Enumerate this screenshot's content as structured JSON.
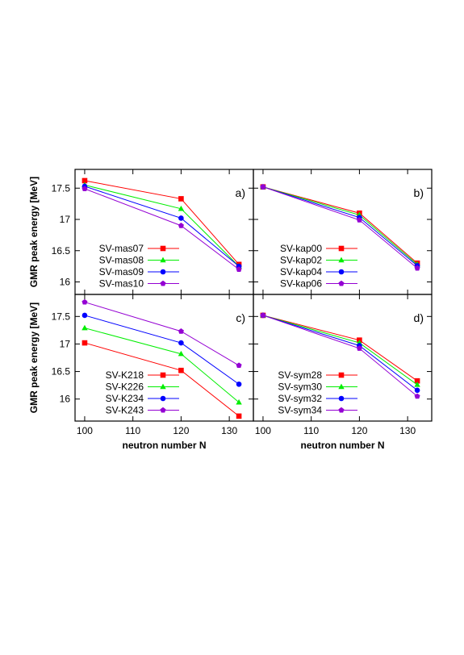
{
  "chart_data": [
    {
      "type": "line",
      "panel_label": "a)",
      "x": [
        100,
        120,
        132
      ],
      "xlabel": "",
      "ylabel": "GMR peak energy [MeV]",
      "xlim": [
        98,
        135
      ],
      "ylim": [
        15.8,
        17.8
      ],
      "xticks": [],
      "yticks": [
        "16",
        "16.5",
        "17",
        "17.5"
      ],
      "legend_position": "bottom-left",
      "series": [
        {
          "name": "SV-mas07",
          "color": "#ff0000",
          "marker": "square",
          "values": [
            17.62,
            17.33,
            16.28
          ]
        },
        {
          "name": "SV-mas08",
          "color": "#00ee00",
          "marker": "triangle",
          "values": [
            17.55,
            17.17,
            16.25
          ]
        },
        {
          "name": "SV-mas09",
          "color": "#0000ff",
          "marker": "circle",
          "values": [
            17.53,
            17.02,
            16.25
          ]
        },
        {
          "name": "SV-mas10",
          "color": "#9400d3",
          "marker": "pentagon",
          "values": [
            17.49,
            16.9,
            16.2
          ]
        }
      ]
    },
    {
      "type": "line",
      "panel_label": "b)",
      "x": [
        100,
        120,
        132
      ],
      "xlabel": "",
      "ylabel": "",
      "xlim": [
        98,
        135
      ],
      "ylim": [
        15.8,
        17.8
      ],
      "xticks": [],
      "yticks": [],
      "legend_position": "bottom-left",
      "series": [
        {
          "name": "SV-kap00",
          "color": "#ff0000",
          "marker": "square",
          "values": [
            17.52,
            17.1,
            16.3
          ]
        },
        {
          "name": "SV-kap02",
          "color": "#00ee00",
          "marker": "triangle",
          "values": [
            17.52,
            17.07,
            16.28
          ]
        },
        {
          "name": "SV-kap04",
          "color": "#0000ff",
          "marker": "circle",
          "values": [
            17.52,
            17.03,
            16.26
          ]
        },
        {
          "name": "SV-kap06",
          "color": "#9400d3",
          "marker": "pentagon",
          "values": [
            17.52,
            16.99,
            16.22
          ]
        }
      ]
    },
    {
      "type": "line",
      "panel_label": "c)",
      "x": [
        100,
        120,
        132
      ],
      "xlabel": "neutron number N",
      "ylabel": "GMR peak energy [MeV]",
      "xlim": [
        98,
        135
      ],
      "ylim": [
        15.6,
        17.9
      ],
      "xticks": [
        "100",
        "110",
        "120",
        "130"
      ],
      "yticks": [
        "16",
        "16.5",
        "17",
        "17.5"
      ],
      "legend_position": "bottom-left",
      "series": [
        {
          "name": "SV-K218",
          "color": "#ff0000",
          "marker": "square",
          "values": [
            17.02,
            16.52,
            15.69
          ]
        },
        {
          "name": "SV-K226",
          "color": "#00ee00",
          "marker": "triangle",
          "values": [
            17.29,
            16.82,
            15.94
          ]
        },
        {
          "name": "SV-K234",
          "color": "#0000ff",
          "marker": "circle",
          "values": [
            17.52,
            17.02,
            16.27
          ]
        },
        {
          "name": "SV-K243",
          "color": "#9400d3",
          "marker": "pentagon",
          "values": [
            17.76,
            17.23,
            16.61
          ]
        }
      ]
    },
    {
      "type": "line",
      "panel_label": "d)",
      "x": [
        100,
        120,
        132
      ],
      "xlabel": "neutron number N",
      "ylabel": "",
      "xlim": [
        98,
        135
      ],
      "ylim": [
        15.6,
        17.9
      ],
      "xticks": [
        "100",
        "110",
        "120",
        "130"
      ],
      "yticks": [],
      "legend_position": "bottom-left",
      "series": [
        {
          "name": "SV-sym28",
          "color": "#ff0000",
          "marker": "square",
          "values": [
            17.52,
            17.07,
            16.33
          ]
        },
        {
          "name": "SV-sym30",
          "color": "#00ee00",
          "marker": "triangle",
          "values": [
            17.52,
            17.02,
            16.26
          ]
        },
        {
          "name": "SV-sym32",
          "color": "#0000ff",
          "marker": "circle",
          "values": [
            17.52,
            16.97,
            16.16
          ]
        },
        {
          "name": "SV-sym34",
          "color": "#9400d3",
          "marker": "pentagon",
          "values": [
            17.52,
            16.92,
            16.05
          ]
        }
      ]
    }
  ]
}
